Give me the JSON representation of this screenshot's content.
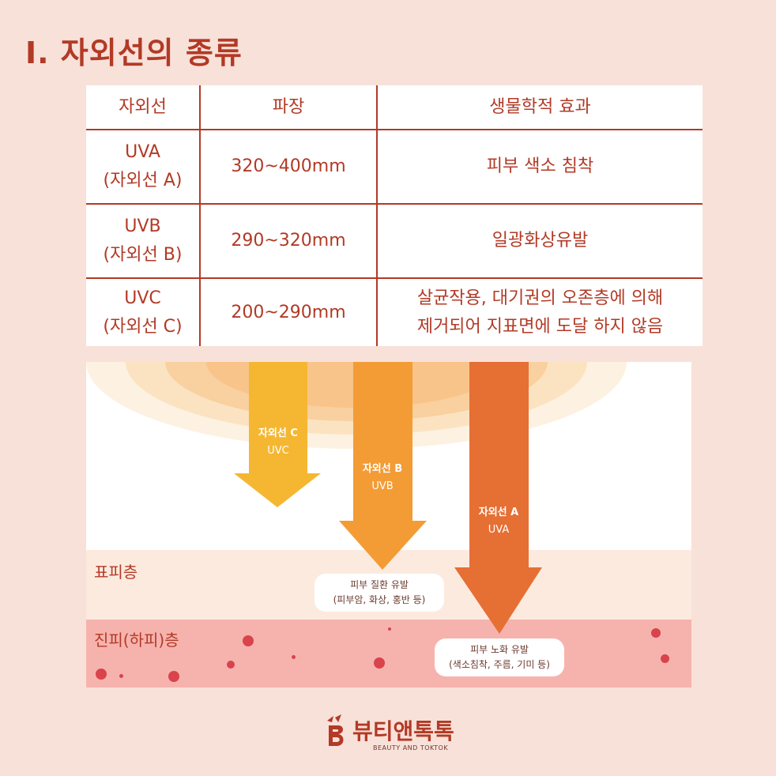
{
  "title": "I. 자외선의 종류",
  "table": {
    "headers": [
      "자외선",
      "파장",
      "생물학적 효과"
    ],
    "rows": [
      {
        "type_line1": "UVA",
        "type_line2": "(자외선 A)",
        "wavelength": "320~400mm",
        "effect_line1": "피부 색소 침착",
        "effect_line2": ""
      },
      {
        "type_line1": "UVB",
        "type_line2": "(자외선 B)",
        "wavelength": "290~320mm",
        "effect_line1": "일광화상유발",
        "effect_line2": ""
      },
      {
        "type_line1": "UVC",
        "type_line2": "(자외선 C)",
        "wavelength": "200~290mm",
        "effect_line1": "살균작용, 대기권의 오존층에 의해",
        "effect_line2": "제거되어 지표면에 도달 하지 않음"
      }
    ]
  },
  "diagram": {
    "arrows": [
      {
        "name": "자외선 C",
        "code": "UVC",
        "color": "#f5b731"
      },
      {
        "name": "자외선 B",
        "code": "UVB",
        "color": "#f39c35"
      },
      {
        "name": "자외선 A",
        "code": "UVA",
        "color": "#e66f34"
      }
    ],
    "layers": {
      "epidermis": "표피층",
      "dermis": "진피(하피)층"
    },
    "bubbles": {
      "uvb_line1": "피부 질환 유발",
      "uvb_line2": "(피부암, 화상, 홍반 등)",
      "uva_line1": "피부 노화 유발",
      "uva_line2": "(색소침착, 주름, 기미 등)"
    }
  },
  "logo": {
    "name": "뷰티앤톡톡",
    "subtitle": "BEAUTY AND TOKTOK"
  }
}
